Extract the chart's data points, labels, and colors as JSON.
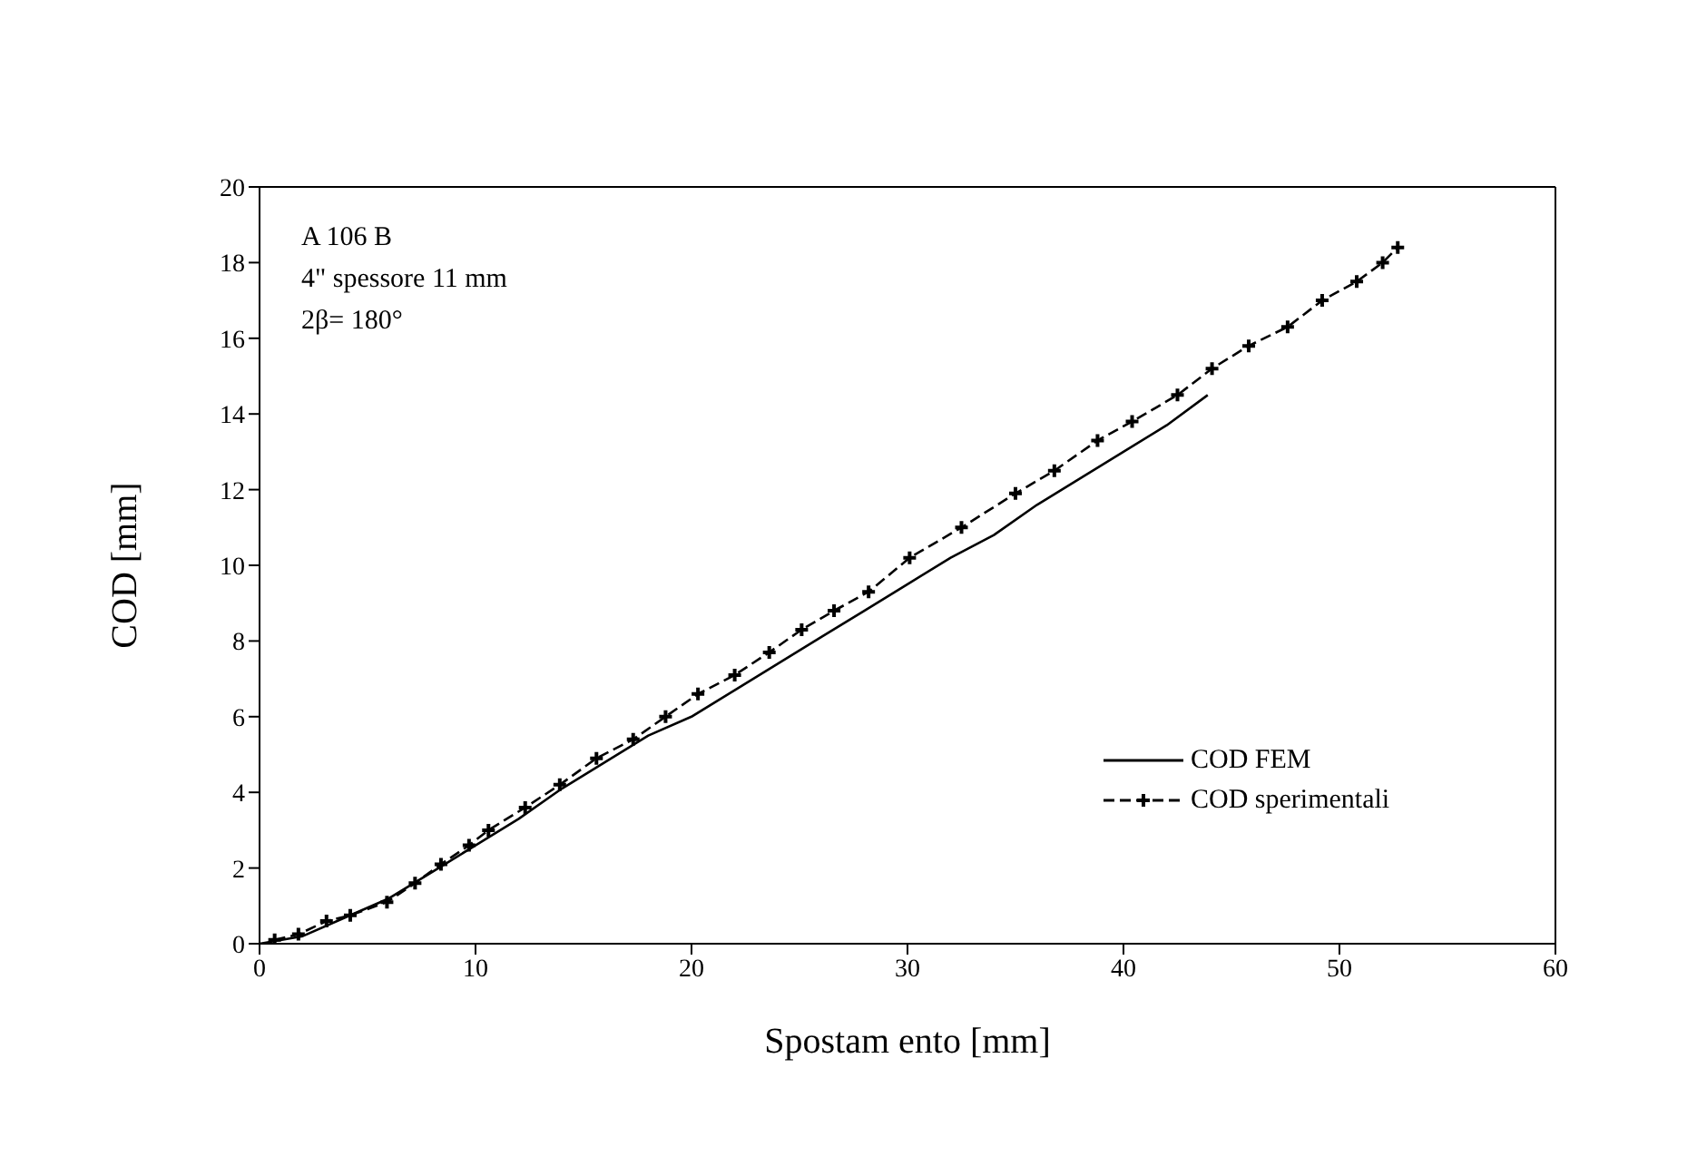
{
  "chart_data": {
    "type": "line",
    "xlabel": "Spostam ento [mm]",
    "ylabel": "COD [mm]",
    "annotations": [
      "A 106 B",
      "4\" spessore 11 mm",
      "2β= 180°"
    ],
    "xlim": [
      0,
      60
    ],
    "xticks": [
      0,
      10,
      20,
      30,
      40,
      50,
      60
    ],
    "ylim": [
      0,
      20
    ],
    "yticks": [
      0,
      2,
      4,
      6,
      8,
      10,
      12,
      14,
      16,
      18,
      20
    ],
    "legend": "right",
    "series": [
      {
        "name": "COD FEM",
        "color": "#000000",
        "line_style": "solid",
        "marker": "none",
        "x": [
          0,
          2,
          4,
          6,
          8,
          10,
          12,
          14,
          16,
          18,
          20,
          22,
          24,
          26,
          28,
          30,
          32,
          34,
          36,
          38,
          40,
          42,
          43.9
        ],
        "values": [
          0,
          0.2,
          0.7,
          1.2,
          1.9,
          2.6,
          3.3,
          4.1,
          4.8,
          5.5,
          6.0,
          6.7,
          7.4,
          8.1,
          8.8,
          9.5,
          10.2,
          10.8,
          11.6,
          12.3,
          13.0,
          13.7,
          14.5
        ]
      },
      {
        "name": "COD sperimentali",
        "color": "#000000",
        "line_style": "dashed",
        "marker": "cross",
        "x": [
          0.7,
          1.8,
          3.1,
          4.2,
          5.9,
          7.2,
          8.4,
          9.7,
          10.6,
          12.3,
          13.9,
          15.6,
          17.3,
          18.8,
          20.3,
          22.0,
          23.6,
          25.1,
          26.6,
          28.2,
          30.1,
          32.5,
          35.0,
          36.8,
          38.8,
          40.4,
          42.5,
          44.1,
          45.8,
          47.6,
          49.2,
          50.8,
          52.0,
          52.7
        ],
        "values": [
          0.1,
          0.25,
          0.6,
          0.75,
          1.1,
          1.6,
          2.1,
          2.6,
          3.0,
          3.6,
          4.2,
          4.9,
          5.4,
          6.0,
          6.6,
          7.1,
          7.7,
          8.3,
          8.8,
          9.3,
          10.2,
          11.0,
          11.9,
          12.5,
          13.3,
          13.8,
          14.5,
          15.2,
          15.8,
          16.3,
          17.0,
          17.5,
          18.0,
          18.4
        ]
      }
    ]
  }
}
